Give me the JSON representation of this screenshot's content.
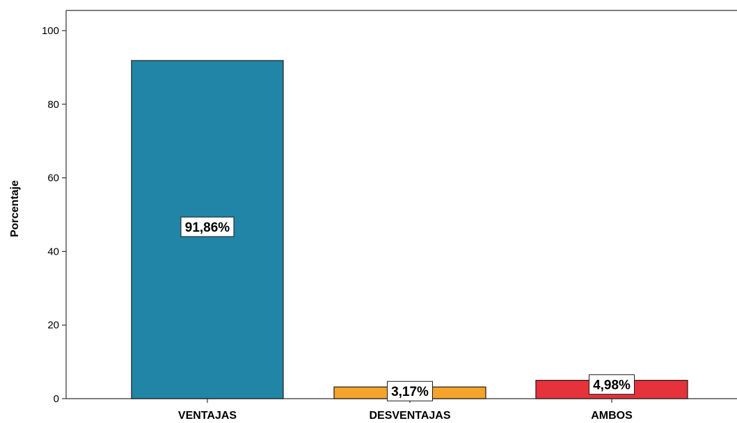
{
  "chart_data": {
    "type": "bar",
    "title": "",
    "xlabel": "",
    "ylabel": "Porcentaje",
    "ylim": [
      0,
      100
    ],
    "yticks": [
      0,
      20,
      40,
      60,
      80,
      100
    ],
    "grid": false,
    "categories": [
      "VENTAJAS",
      "DESVENTAJAS",
      "AMBOS"
    ],
    "values": [
      91.86,
      3.17,
      4.98
    ],
    "data_labels": [
      "91,86%",
      "3,17%",
      "4,98%"
    ],
    "colors": [
      "#2185a8",
      "#f5a32a",
      "#e6323b"
    ],
    "bar_outline_color": "#1a1a1a",
    "data_label_position": [
      "middle",
      "top",
      "top"
    ]
  }
}
